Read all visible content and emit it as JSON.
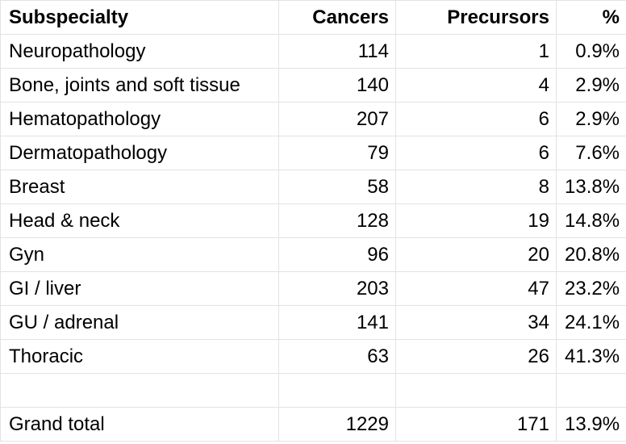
{
  "headers": [
    "Subspecialty",
    "Cancers",
    "Precursors",
    "%"
  ],
  "rows": [
    {
      "subspecialty": "Neuropathology",
      "cancers": "114",
      "precursors": "1",
      "pct": "0.9%"
    },
    {
      "subspecialty": "Bone, joints and soft tissue",
      "cancers": "140",
      "precursors": "4",
      "pct": "2.9%"
    },
    {
      "subspecialty": "Hematopathology",
      "cancers": "207",
      "precursors": "6",
      "pct": "2.9%"
    },
    {
      "subspecialty": "Dermatopathology",
      "cancers": "79",
      "precursors": "6",
      "pct": "7.6%"
    },
    {
      "subspecialty": "Breast",
      "cancers": "58",
      "precursors": "8",
      "pct": "13.8%"
    },
    {
      "subspecialty": "Head & neck",
      "cancers": "128",
      "precursors": "19",
      "pct": "14.8%"
    },
    {
      "subspecialty": "Gyn",
      "cancers": "96",
      "precursors": "20",
      "pct": "20.8%"
    },
    {
      "subspecialty": "GI / liver",
      "cancers": "203",
      "precursors": "47",
      "pct": "23.2%"
    },
    {
      "subspecialty": "GU / adrenal",
      "cancers": "141",
      "precursors": "34",
      "pct": "24.1%"
    },
    {
      "subspecialty": "Thoracic",
      "cancers": "63",
      "precursors": "26",
      "pct": "41.3%"
    }
  ],
  "total": {
    "subspecialty": "Grand total",
    "cancers": "1229",
    "precursors": "171",
    "pct": "13.9%"
  }
}
